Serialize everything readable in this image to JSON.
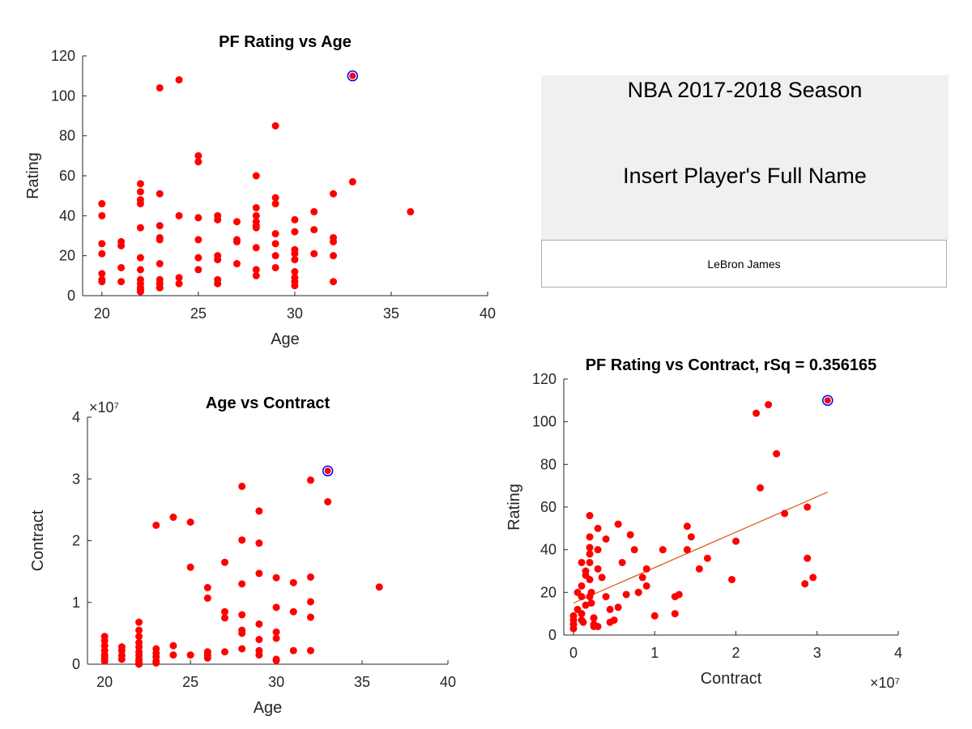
{
  "panel": {
    "title": "NBA 2017-2018 Season",
    "subtitle": "Insert Player's Full Name",
    "player_name": "LeBron James"
  },
  "colors": {
    "points": "#ff0000",
    "highlight_ring": "#0000ff",
    "fit_line": "#d95319",
    "panel_bg": "#f0f0f0",
    "axis": "#262626"
  },
  "chart_data": [
    {
      "id": "rating_vs_age",
      "type": "scatter",
      "title": "PF Rating vs Age",
      "xlabel": "Age",
      "ylabel": "Rating",
      "xlim": [
        19,
        40
      ],
      "ylim": [
        0,
        120
      ],
      "xticks": [
        20,
        25,
        30,
        35,
        40
      ],
      "yticks": [
        0,
        20,
        40,
        60,
        80,
        100,
        120
      ],
      "exponent_label": "",
      "grid": false,
      "x": [
        20,
        20,
        20,
        20,
        20,
        20,
        20,
        21,
        21,
        21,
        21,
        22,
        22,
        22,
        22,
        22,
        22,
        22,
        22,
        22,
        22,
        22,
        22,
        23,
        23,
        23,
        23,
        23,
        23,
        23,
        23,
        23,
        23,
        24,
        24,
        24,
        24,
        25,
        25,
        25,
        25,
        25,
        25,
        26,
        26,
        26,
        26,
        26,
        26,
        27,
        27,
        27,
        27,
        28,
        28,
        28,
        28,
        28,
        28,
        28,
        28,
        28,
        29,
        29,
        29,
        29,
        29,
        29,
        29,
        30,
        30,
        30,
        30,
        30,
        30,
        30,
        30,
        30,
        31,
        31,
        31,
        32,
        32,
        32,
        32,
        32,
        33,
        36
      ],
      "y": [
        46,
        40,
        26,
        21,
        11,
        8,
        7,
        27,
        25,
        14,
        7,
        56,
        52,
        48,
        46,
        34,
        19,
        13,
        8,
        6,
        4,
        3,
        2,
        104,
        51,
        35,
        29,
        28,
        16,
        8,
        6,
        4,
        4,
        108,
        40,
        9,
        6,
        70,
        67,
        39,
        28,
        19,
        13,
        40,
        38,
        20,
        18,
        8,
        6,
        37,
        28,
        16,
        27,
        60,
        44,
        40,
        37,
        34,
        24,
        13,
        10,
        35,
        85,
        49,
        46,
        31,
        26,
        20,
        14,
        38,
        32,
        23,
        21,
        18,
        12,
        9,
        7,
        5,
        42,
        33,
        21,
        51,
        29,
        27,
        20,
        7,
        57,
        42
      ],
      "highlight": {
        "x": 33,
        "y": 110
      }
    },
    {
      "id": "contract_vs_age",
      "type": "scatter",
      "title": "Age vs Contract",
      "xlabel": "Age",
      "ylabel": "Contract",
      "xlim": [
        19,
        40
      ],
      "ylim": [
        0,
        4
      ],
      "xticks": [
        20,
        25,
        30,
        35,
        40
      ],
      "yticks": [
        0,
        1,
        2,
        3,
        4
      ],
      "exponent_label": "×10⁷",
      "exponent_position": "top-left",
      "grid": false,
      "x": [
        20,
        20,
        20,
        20,
        20,
        20,
        20,
        21,
        21,
        21,
        21,
        22,
        22,
        22,
        22,
        22,
        22,
        22,
        22,
        22,
        22,
        22,
        22,
        23,
        23,
        23,
        23,
        23,
        23,
        24,
        24,
        24,
        25,
        25,
        25,
        26,
        26,
        26,
        26,
        26,
        27,
        27,
        27,
        27,
        28,
        28,
        28,
        28,
        28,
        28,
        28,
        29,
        29,
        29,
        29,
        29,
        29,
        29,
        30,
        30,
        30,
        30,
        30,
        30,
        31,
        31,
        31,
        32,
        32,
        32,
        32,
        32,
        33,
        36
      ],
      "y": [
        0.45,
        0.38,
        0.3,
        0.22,
        0.15,
        0.1,
        0.05,
        0.28,
        0.22,
        0.14,
        0.08,
        0.68,
        0.55,
        0.45,
        0.35,
        0.28,
        0.2,
        0.14,
        0.08,
        0.05,
        0.02,
        0.01,
        0.0,
        2.25,
        0.25,
        0.18,
        0.12,
        0.05,
        0.02,
        2.38,
        0.3,
        0.15,
        2.3,
        1.57,
        0.15,
        1.24,
        1.07,
        0.2,
        0.15,
        0.1,
        1.65,
        0.85,
        0.75,
        0.2,
        2.88,
        2.01,
        1.3,
        0.8,
        0.55,
        0.5,
        0.25,
        2.48,
        1.96,
        1.47,
        0.65,
        0.4,
        0.22,
        0.15,
        1.4,
        0.92,
        0.52,
        0.42,
        0.08,
        0.06,
        1.32,
        0.85,
        0.22,
        2.98,
        1.41,
        1.01,
        0.76,
        0.22,
        2.63,
        1.25
      ],
      "highlight": {
        "x": 33,
        "y": 3.13
      }
    },
    {
      "id": "rating_vs_contract",
      "type": "scatter",
      "title": "PF Rating vs Contract, rSq = 0.356165",
      "xlabel": "Contract",
      "ylabel": "Rating",
      "xlim": [
        -0.12,
        4
      ],
      "ylim": [
        0,
        120
      ],
      "xticks": [
        0,
        1,
        2,
        3,
        4
      ],
      "yticks": [
        0,
        20,
        40,
        60,
        80,
        100,
        120
      ],
      "exponent_label": "×10⁷",
      "exponent_position": "bottom-right",
      "grid": false,
      "x": [
        0.0,
        0.0,
        0.0,
        0.0,
        0.05,
        0.1,
        0.1,
        0.1,
        0.1,
        0.12,
        0.15,
        0.15,
        0.2,
        0.2,
        0.2,
        0.2,
        0.2,
        0.22,
        0.22,
        0.25,
        0.25,
        0.25,
        0.3,
        0.3,
        0.3,
        0.35,
        0.4,
        0.45,
        0.45,
        0.55,
        0.6,
        0.7,
        0.8,
        0.9,
        0.9,
        1.0,
        1.3,
        1.4,
        1.55,
        1.65,
        1.95,
        2.0,
        2.3,
        2.5,
        2.6,
        2.85,
        2.88,
        2.88,
        2.95,
        0.0,
        0.05,
        0.15,
        0.2,
        0.25,
        0.1,
        0.3,
        0.4,
        0.5,
        0.55,
        0.65,
        0.75,
        0.85,
        1.1,
        1.25,
        1.4,
        1.45,
        0.2,
        0.8,
        1.25,
        2.25,
        2.4
      ],
      "y": [
        3,
        5,
        7,
        9,
        12,
        23,
        34,
        18,
        10,
        6,
        30,
        28,
        56,
        46,
        41,
        34,
        26,
        20,
        15,
        8,
        5,
        4,
        50,
        40,
        31,
        27,
        18,
        12,
        6,
        52,
        34,
        47,
        20,
        23,
        31,
        9,
        19,
        40,
        31,
        36,
        26,
        44,
        69,
        85,
        57,
        24,
        36,
        60,
        27,
        5,
        20,
        14,
        18,
        8,
        7,
        4,
        45,
        7,
        13,
        19,
        40,
        27,
        40,
        18,
        51,
        46,
        38,
        20,
        10,
        104,
        108
      ],
      "highlight": {
        "x": 3.13,
        "y": 110
      },
      "fit_line": {
        "x": [
          0.0,
          3.13
        ],
        "y": [
          15,
          67
        ]
      }
    }
  ]
}
